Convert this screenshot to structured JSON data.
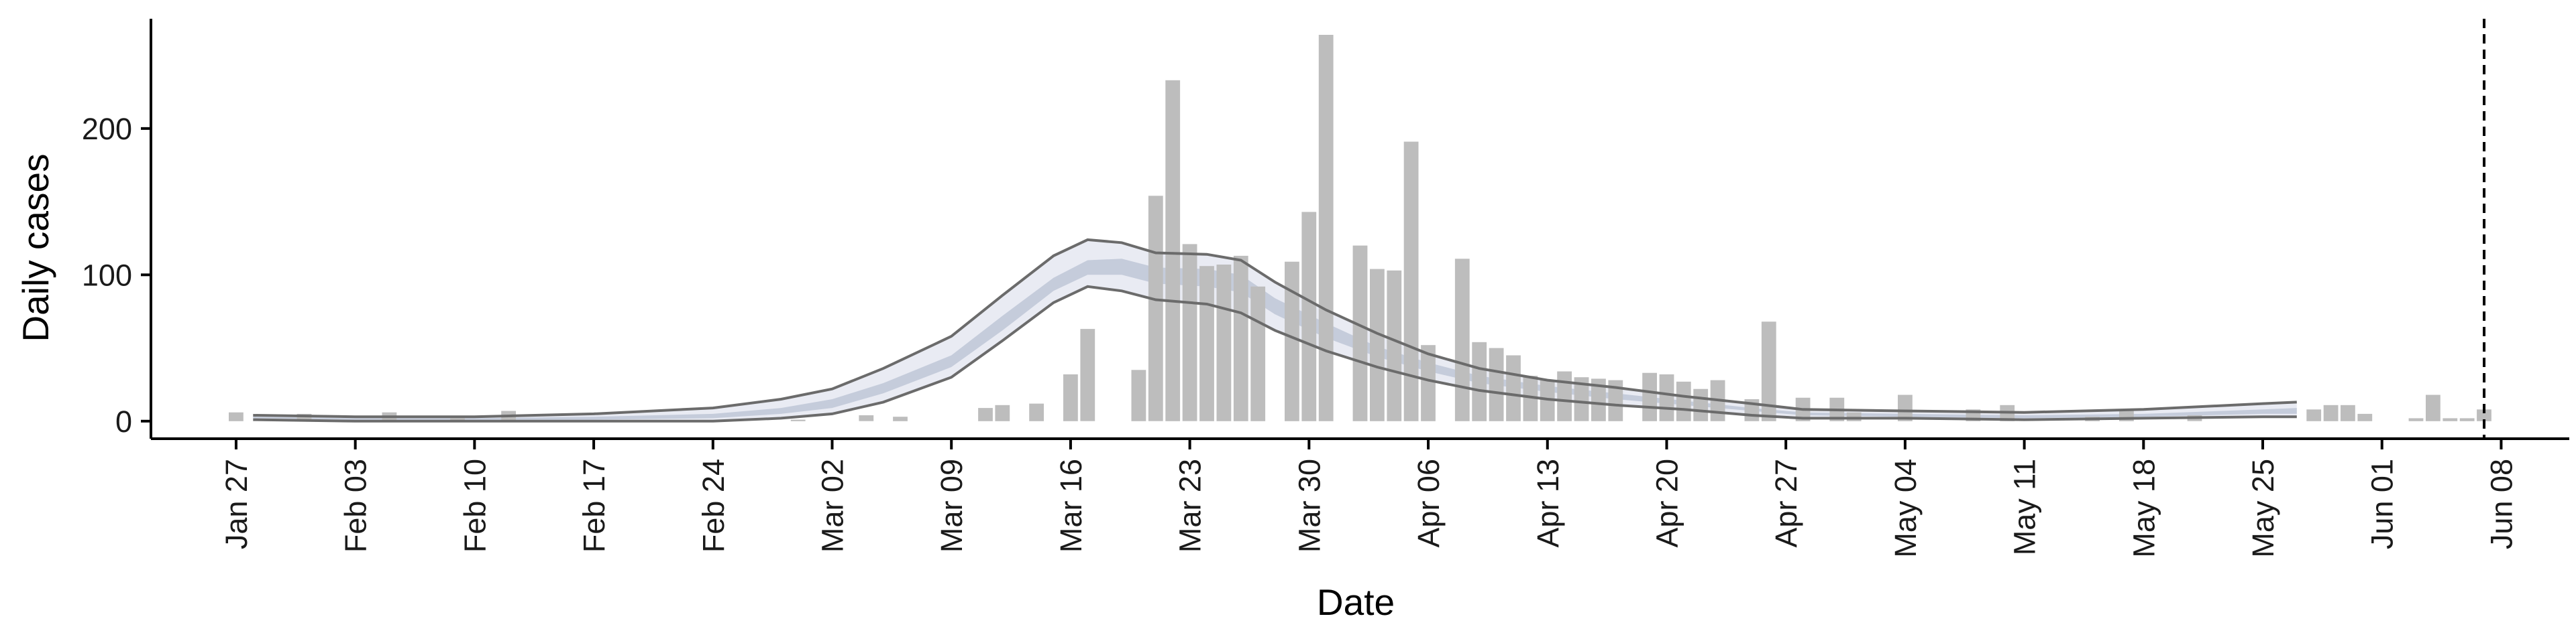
{
  "chart_data": {
    "type": "bar",
    "xlabel": "Date",
    "ylabel": "Daily cases",
    "x_range": [
      "2020-01-22",
      "2020-06-12"
    ],
    "ylim": [
      -12,
      275
    ],
    "y_ticks": [
      0,
      100,
      200
    ],
    "x_ticks": [
      {
        "date": "2020-01-27",
        "label": "Jan 27"
      },
      {
        "date": "2020-02-03",
        "label": "Feb 03"
      },
      {
        "date": "2020-02-10",
        "label": "Feb 10"
      },
      {
        "date": "2020-02-17",
        "label": "Feb 17"
      },
      {
        "date": "2020-02-24",
        "label": "Feb 24"
      },
      {
        "date": "2020-03-02",
        "label": "Mar 02"
      },
      {
        "date": "2020-03-09",
        "label": "Mar 09"
      },
      {
        "date": "2020-03-16",
        "label": "Mar 16"
      },
      {
        "date": "2020-03-23",
        "label": "Mar 23"
      },
      {
        "date": "2020-03-30",
        "label": "Mar 30"
      },
      {
        "date": "2020-04-06",
        "label": "Apr 06"
      },
      {
        "date": "2020-04-13",
        "label": "Apr 13"
      },
      {
        "date": "2020-04-20",
        "label": "Apr 20"
      },
      {
        "date": "2020-04-27",
        "label": "Apr 27"
      },
      {
        "date": "2020-05-04",
        "label": "May 04"
      },
      {
        "date": "2020-05-11",
        "label": "May 11"
      },
      {
        "date": "2020-05-18",
        "label": "May 18"
      },
      {
        "date": "2020-05-25",
        "label": "May 25"
      },
      {
        "date": "2020-06-01",
        "label": "Jun 01"
      },
      {
        "date": "2020-06-08",
        "label": "Jun 08"
      }
    ],
    "vline_date": "2020-06-07",
    "grid": false,
    "legend": "none",
    "colors": {
      "bars": "#bdbdbd",
      "band_outer": "#e9ebf3",
      "band_inner": "#c5ccdb",
      "bound_lines": "#6b6b6b",
      "axis": "#000000"
    },
    "bars": [
      {
        "x": "2020-01-27",
        "y": 6
      },
      {
        "x": "2020-01-31",
        "y": 5
      },
      {
        "x": "2020-02-05",
        "y": 6
      },
      {
        "x": "2020-02-09",
        "y": 2
      },
      {
        "x": "2020-02-12",
        "y": 7
      },
      {
        "x": "2020-02-29",
        "y": 1
      },
      {
        "x": "2020-03-04",
        "y": 4
      },
      {
        "x": "2020-03-06",
        "y": 3
      },
      {
        "x": "2020-03-11",
        "y": 9
      },
      {
        "x": "2020-03-12",
        "y": 11
      },
      {
        "x": "2020-03-14",
        "y": 12
      },
      {
        "x": "2020-03-16",
        "y": 32
      },
      {
        "x": "2020-03-17",
        "y": 63
      },
      {
        "x": "2020-03-20",
        "y": 35
      },
      {
        "x": "2020-03-21",
        "y": 154
      },
      {
        "x": "2020-03-22",
        "y": 233
      },
      {
        "x": "2020-03-23",
        "y": 121
      },
      {
        "x": "2020-03-24",
        "y": 106
      },
      {
        "x": "2020-03-25",
        "y": 107
      },
      {
        "x": "2020-03-26",
        "y": 113
      },
      {
        "x": "2020-03-27",
        "y": 92
      },
      {
        "x": "2020-03-29",
        "y": 109
      },
      {
        "x": "2020-03-30",
        "y": 143
      },
      {
        "x": "2020-03-31",
        "y": 264
      },
      {
        "x": "2020-04-02",
        "y": 120
      },
      {
        "x": "2020-04-03",
        "y": 104
      },
      {
        "x": "2020-04-04",
        "y": 103
      },
      {
        "x": "2020-04-05",
        "y": 191
      },
      {
        "x": "2020-04-06",
        "y": 52
      },
      {
        "x": "2020-04-08",
        "y": 111
      },
      {
        "x": "2020-04-09",
        "y": 54
      },
      {
        "x": "2020-04-10",
        "y": 50
      },
      {
        "x": "2020-04-11",
        "y": 45
      },
      {
        "x": "2020-04-12",
        "y": 31
      },
      {
        "x": "2020-04-13",
        "y": 28
      },
      {
        "x": "2020-04-14",
        "y": 34
      },
      {
        "x": "2020-04-15",
        "y": 30
      },
      {
        "x": "2020-04-16",
        "y": 29
      },
      {
        "x": "2020-04-17",
        "y": 28
      },
      {
        "x": "2020-04-19",
        "y": 33
      },
      {
        "x": "2020-04-20",
        "y": 32
      },
      {
        "x": "2020-04-21",
        "y": 27
      },
      {
        "x": "2020-04-22",
        "y": 22
      },
      {
        "x": "2020-04-23",
        "y": 28
      },
      {
        "x": "2020-04-25",
        "y": 15
      },
      {
        "x": "2020-04-26",
        "y": 68
      },
      {
        "x": "2020-04-28",
        "y": 16
      },
      {
        "x": "2020-04-30",
        "y": 16
      },
      {
        "x": "2020-05-01",
        "y": 6
      },
      {
        "x": "2020-05-04",
        "y": 18
      },
      {
        "x": "2020-05-08",
        "y": 8
      },
      {
        "x": "2020-05-10",
        "y": 11
      },
      {
        "x": "2020-05-15",
        "y": 3
      },
      {
        "x": "2020-05-17",
        "y": 7
      },
      {
        "x": "2020-05-21",
        "y": 4
      },
      {
        "x": "2020-05-28",
        "y": 8
      },
      {
        "x": "2020-05-29",
        "y": 11
      },
      {
        "x": "2020-05-30",
        "y": 11
      },
      {
        "x": "2020-05-31",
        "y": 5
      },
      {
        "x": "2020-06-03",
        "y": 2
      },
      {
        "x": "2020-06-04",
        "y": 18
      },
      {
        "x": "2020-06-05",
        "y": 2
      },
      {
        "x": "2020-06-06",
        "y": 2
      },
      {
        "x": "2020-06-07",
        "y": 8
      }
    ],
    "band": [
      {
        "x": "2020-01-28",
        "outer_lo": 1,
        "inner_lo": 2,
        "inner_hi": 3,
        "outer_hi": 4
      },
      {
        "x": "2020-02-03",
        "outer_lo": 0,
        "inner_lo": 1,
        "inner_hi": 2,
        "outer_hi": 3
      },
      {
        "x": "2020-02-10",
        "outer_lo": 0,
        "inner_lo": 1,
        "inner_hi": 2,
        "outer_hi": 3
      },
      {
        "x": "2020-02-17",
        "outer_lo": 0,
        "inner_lo": 1,
        "inner_hi": 3,
        "outer_hi": 5
      },
      {
        "x": "2020-02-24",
        "outer_lo": 0,
        "inner_lo": 2,
        "inner_hi": 5,
        "outer_hi": 9
      },
      {
        "x": "2020-02-28",
        "outer_lo": 2,
        "inner_lo": 5,
        "inner_hi": 9,
        "outer_hi": 15
      },
      {
        "x": "2020-03-02",
        "outer_lo": 5,
        "inner_lo": 9,
        "inner_hi": 15,
        "outer_hi": 22
      },
      {
        "x": "2020-03-05",
        "outer_lo": 13,
        "inner_lo": 19,
        "inner_hi": 26,
        "outer_hi": 36
      },
      {
        "x": "2020-03-09",
        "outer_lo": 30,
        "inner_lo": 37,
        "inner_hi": 45,
        "outer_hi": 58
      },
      {
        "x": "2020-03-12",
        "outer_lo": 55,
        "inner_lo": 62,
        "inner_hi": 72,
        "outer_hi": 86
      },
      {
        "x": "2020-03-15",
        "outer_lo": 81,
        "inner_lo": 89,
        "inner_hi": 98,
        "outer_hi": 113
      },
      {
        "x": "2020-03-17",
        "outer_lo": 92,
        "inner_lo": 100,
        "inner_hi": 110,
        "outer_hi": 124
      },
      {
        "x": "2020-03-19",
        "outer_lo": 89,
        "inner_lo": 100,
        "inner_hi": 111,
        "outer_hi": 122
      },
      {
        "x": "2020-03-21",
        "outer_lo": 83,
        "inner_lo": 94,
        "inner_hi": 105,
        "outer_hi": 115
      },
      {
        "x": "2020-03-24",
        "outer_lo": 80,
        "inner_lo": 92,
        "inner_hi": 104,
        "outer_hi": 114
      },
      {
        "x": "2020-03-26",
        "outer_lo": 74,
        "inner_lo": 88,
        "inner_hi": 100,
        "outer_hi": 110
      },
      {
        "x": "2020-03-28",
        "outer_lo": 62,
        "inner_lo": 73,
        "inner_hi": 84,
        "outer_hi": 95
      },
      {
        "x": "2020-03-31",
        "outer_lo": 48,
        "inner_lo": 57,
        "inner_hi": 67,
        "outer_hi": 76
      },
      {
        "x": "2020-04-03",
        "outer_lo": 37,
        "inner_lo": 44,
        "inner_hi": 51,
        "outer_hi": 60
      },
      {
        "x": "2020-04-06",
        "outer_lo": 28,
        "inner_lo": 34,
        "inner_hi": 40,
        "outer_hi": 46
      },
      {
        "x": "2020-04-09",
        "outer_lo": 21,
        "inner_lo": 26,
        "inner_hi": 31,
        "outer_hi": 36
      },
      {
        "x": "2020-04-13",
        "outer_lo": 15,
        "inner_lo": 20,
        "inner_hi": 24,
        "outer_hi": 28
      },
      {
        "x": "2020-04-17",
        "outer_lo": 11,
        "inner_lo": 15,
        "inner_hi": 19,
        "outer_hi": 23
      },
      {
        "x": "2020-04-21",
        "outer_lo": 8,
        "inner_lo": 11,
        "inner_hi": 14,
        "outer_hi": 17
      },
      {
        "x": "2020-04-25",
        "outer_lo": 4,
        "inner_lo": 7,
        "inner_hi": 9,
        "outer_hi": 12
      },
      {
        "x": "2020-04-28",
        "outer_lo": 2,
        "inner_lo": 4,
        "inner_hi": 6,
        "outer_hi": 8
      },
      {
        "x": "2020-05-04",
        "outer_lo": 2,
        "inner_lo": 3,
        "inner_hi": 5,
        "outer_hi": 7
      },
      {
        "x": "2020-05-11",
        "outer_lo": 1,
        "inner_lo": 2,
        "inner_hi": 4,
        "outer_hi": 6
      },
      {
        "x": "2020-05-18",
        "outer_lo": 2,
        "inner_lo": 3,
        "inner_hi": 5,
        "outer_hi": 8
      },
      {
        "x": "2020-05-25",
        "outer_lo": 3,
        "inner_lo": 5,
        "inner_hi": 8,
        "outer_hi": 12
      },
      {
        "x": "2020-05-27",
        "outer_lo": 3,
        "inner_lo": 5,
        "inner_hi": 9,
        "outer_hi": 13
      }
    ]
  }
}
